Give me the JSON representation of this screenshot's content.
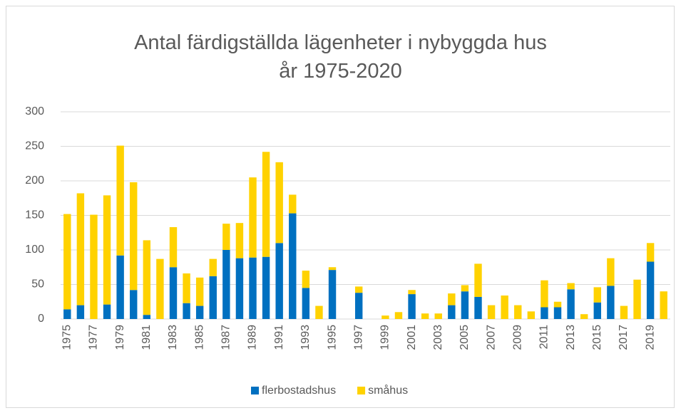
{
  "chart_data": {
    "type": "stacked_bar",
    "title": "Antal färdigställda lägenheter i nybyggda hus år 1975-2020",
    "categories": [
      "1975",
      null,
      "1977",
      null,
      "1979",
      null,
      "1981",
      null,
      "1983",
      null,
      "1985",
      null,
      "1987",
      null,
      "1989",
      null,
      "1991",
      null,
      "1993",
      null,
      "1995",
      null,
      "1997",
      null,
      "1999",
      null,
      "2001",
      null,
      "2003",
      null,
      "2005",
      null,
      "2007",
      null,
      "2009",
      null,
      "2011",
      null,
      "2013",
      null,
      "2015",
      null,
      "2017",
      null,
      "2019",
      null
    ],
    "series": [
      {
        "name": "flerbostadshus",
        "color": "#0070c0",
        "values": [
          14,
          20,
          0,
          21,
          92,
          42,
          6,
          0,
          75,
          23,
          19,
          62,
          100,
          88,
          89,
          90,
          110,
          153,
          45,
          0,
          71,
          0,
          38,
          0,
          0,
          0,
          36,
          0,
          0,
          20,
          40,
          32,
          0,
          0,
          0,
          0,
          17,
          17,
          43,
          0,
          24,
          48,
          0,
          0,
          83,
          0
        ]
      },
      {
        "name": "småhus",
        "color": "#ffd200",
        "values": [
          138,
          162,
          151,
          158,
          159,
          156,
          108,
          87,
          58,
          43,
          41,
          25,
          38,
          51,
          116,
          152,
          117,
          27,
          25,
          19,
          4,
          0,
          9,
          0,
          5,
          10,
          6,
          8,
          8,
          17,
          9,
          48,
          20,
          34,
          20,
          11,
          39,
          8,
          9,
          7,
          22,
          40,
          19,
          57,
          27,
          40
        ]
      }
    ],
    "ylim": [
      0,
      300
    ],
    "yticks": [
      0,
      50,
      100,
      150,
      200,
      250,
      300
    ],
    "grid": true,
    "legend": "bottom"
  }
}
